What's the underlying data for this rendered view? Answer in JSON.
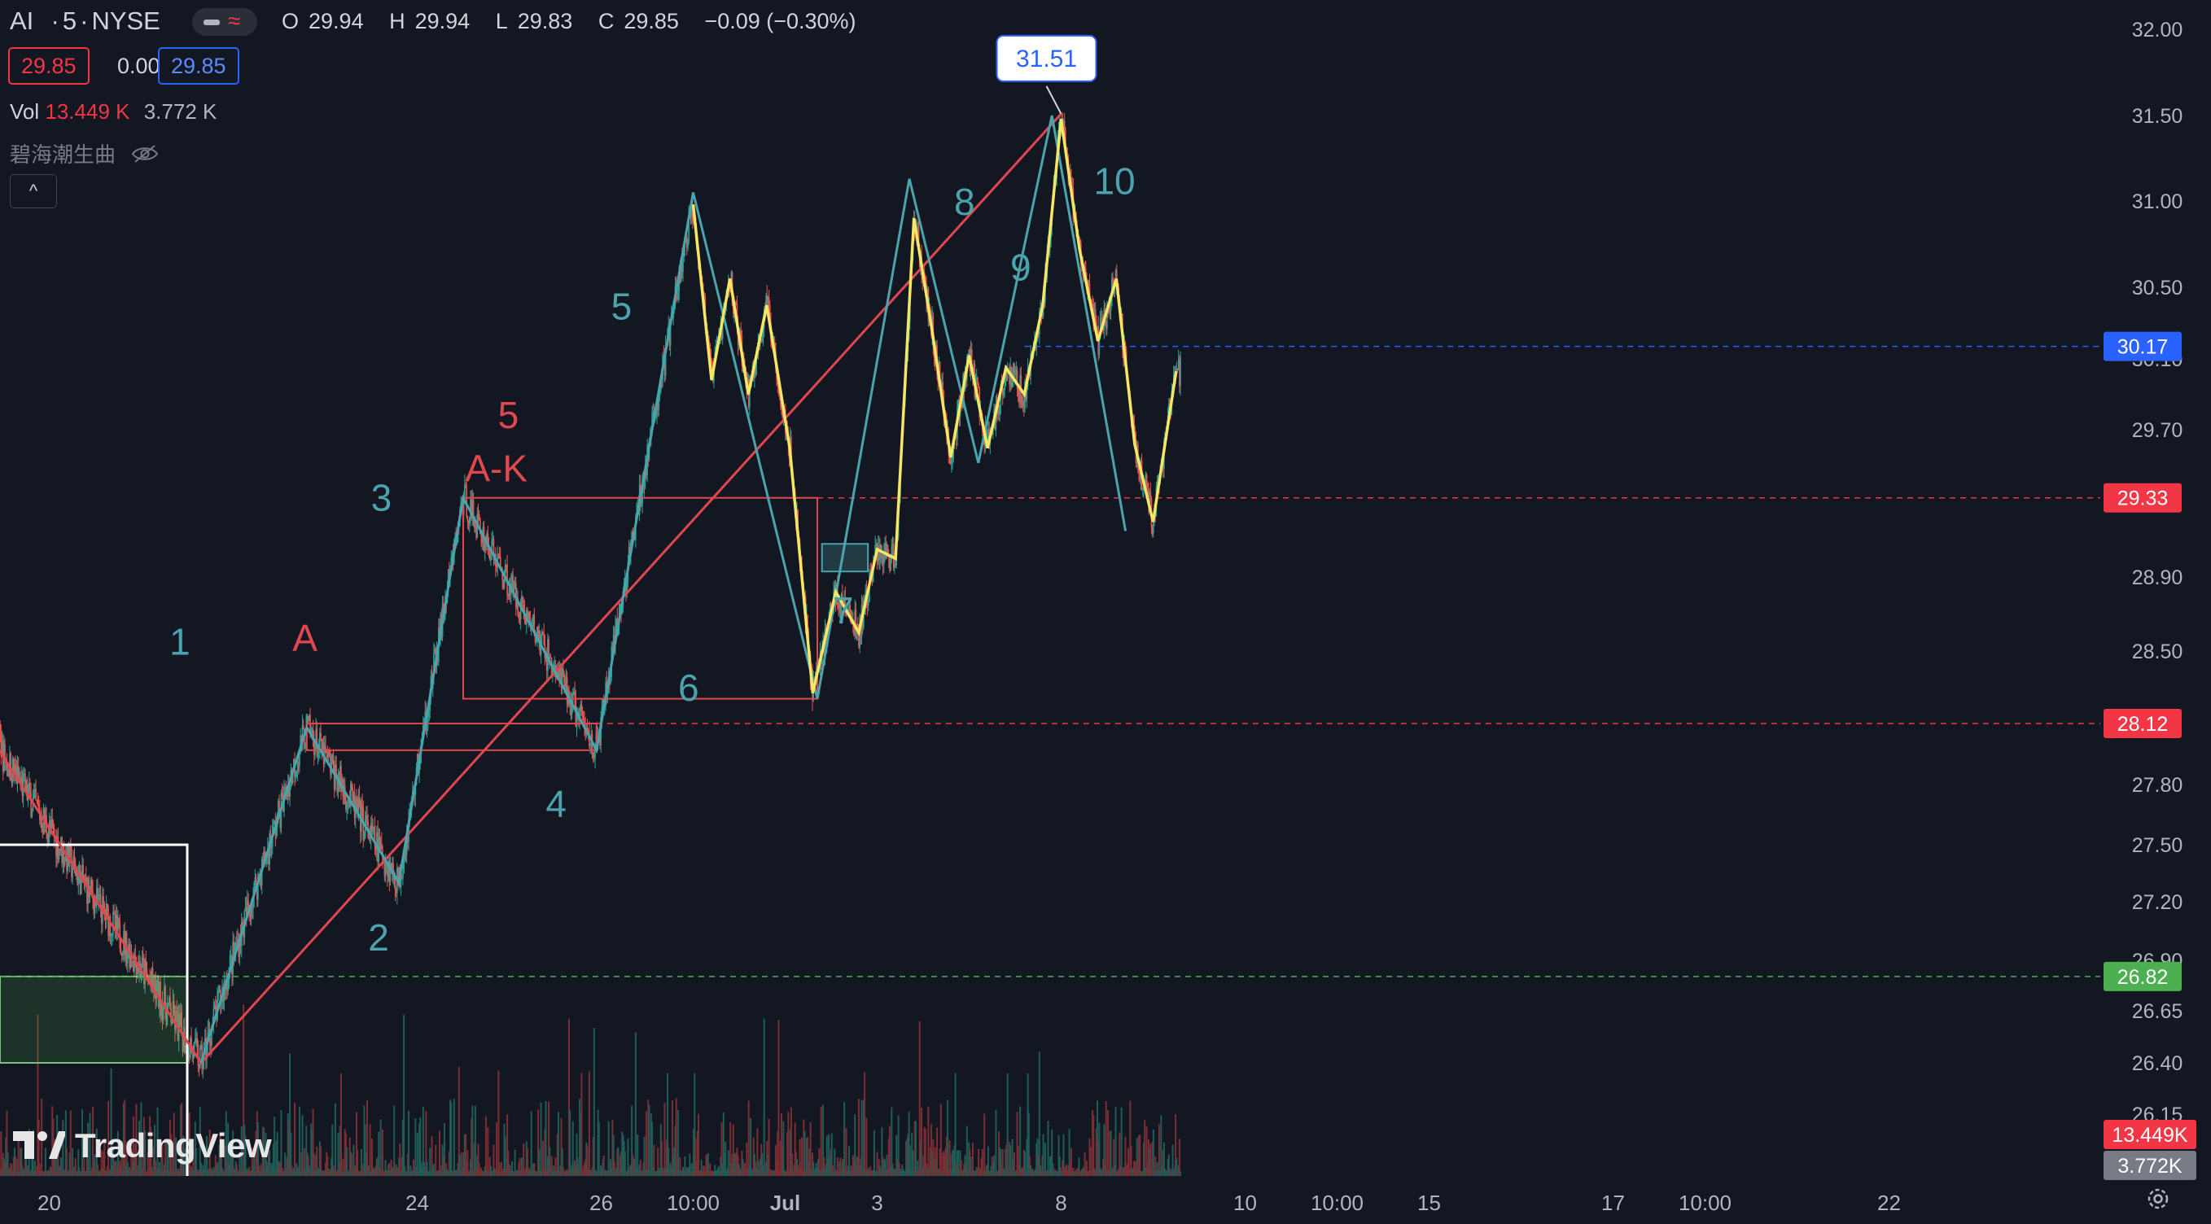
{
  "header": {
    "symbol": "AI",
    "interval": "5",
    "exchange": "NYSE",
    "open_label": "O",
    "open": "29.94",
    "high_label": "H",
    "high": "29.94",
    "low_label": "L",
    "low": "29.83",
    "close_label": "C",
    "close": "29.85",
    "change": "−0.09 (−0.30%)",
    "bid": "29.85",
    "spread": "0.00",
    "ask": "29.85",
    "volume_label": "Vol",
    "volume_value": "13.449 K",
    "volume_ma": "3.772 K",
    "indicator_name": "碧海潮生曲",
    "collapse_symbol": "^"
  },
  "brand": {
    "name": "TradingView",
    "logo_icon": "tradingview-logo-icon"
  },
  "colors": {
    "background": "#131722",
    "up": "#26a69a",
    "down": "#ef5350",
    "wave_teal": "#4ba3ad",
    "wave_yellow": "#f5e663",
    "trend_red": "#e0474f",
    "box_red": "#e0474f",
    "price_blue": "#2962ff",
    "price_red": "#f23645",
    "price_green": "#4caf50"
  },
  "chart_data": {
    "type": "candlestick",
    "title": "",
    "yticks": [
      32.0,
      31.5,
      31.0,
      30.5,
      30.1,
      29.7,
      28.9,
      28.5,
      27.8,
      27.5,
      27.2,
      26.9,
      26.65,
      26.4,
      26.15
    ],
    "xticks": [
      {
        "label": "20",
        "t": -1.5
      },
      {
        "label": "24",
        "t": 2.5
      },
      {
        "label": "26",
        "t": 4.5
      },
      {
        "label": "10:00",
        "t": 5.5
      },
      {
        "label": "Jul",
        "t": 6.5
      },
      {
        "label": "3",
        "t": 7.5
      },
      {
        "label": "8",
        "t": 9.5
      },
      {
        "label": "10",
        "t": 11.5
      },
      {
        "label": "10:00",
        "t": 12.5
      },
      {
        "label": "15",
        "t": 13.5
      },
      {
        "label": "17",
        "t": 15.5
      },
      {
        "label": "10:00",
        "t": 16.5
      },
      {
        "label": "22",
        "t": 18.5
      }
    ],
    "price_tags": [
      {
        "value": "30.17",
        "color": "#2962ff",
        "dash": "#2962ff"
      },
      {
        "value": "29.33",
        "color": "#f23645",
        "dash": "#f23645"
      },
      {
        "value": "28.12",
        "color": "#f23645",
        "dash": "#f23645"
      },
      {
        "value": "26.82",
        "color": "#4caf50",
        "dash": "#4caf50"
      }
    ],
    "volume_tags": [
      {
        "value": "13.449K",
        "color": "#f23645"
      },
      {
        "value": "3.772K",
        "color": "#787b86"
      }
    ],
    "high_callout": "31.51",
    "wave_teal": [
      {
        "t": 0.15,
        "p": 26.4
      },
      {
        "t": 1.3,
        "p": 28.1
      },
      {
        "t": 2.3,
        "p": 27.3
      },
      {
        "t": 3.0,
        "p": 29.33
      },
      {
        "t": 4.45,
        "p": 27.98
      },
      {
        "t": 5.5,
        "p": 31.05
      },
      {
        "t": 6.85,
        "p": 28.25
      },
      {
        "t": 7.85,
        "p": 31.13
      },
      {
        "t": 8.6,
        "p": 29.52
      },
      {
        "t": 9.4,
        "p": 31.5
      },
      {
        "t": 10.2,
        "p": 29.15
      }
    ],
    "wave_yellow": [
      {
        "t": 5.5,
        "p": 30.98
      },
      {
        "t": 5.7,
        "p": 29.98
      },
      {
        "t": 5.9,
        "p": 30.55
      },
      {
        "t": 6.1,
        "p": 29.9
      },
      {
        "t": 6.3,
        "p": 30.4
      },
      {
        "t": 6.55,
        "p": 29.6
      },
      {
        "t": 6.8,
        "p": 28.28
      },
      {
        "t": 7.05,
        "p": 28.82
      },
      {
        "t": 7.3,
        "p": 28.6
      },
      {
        "t": 7.5,
        "p": 29.05
      },
      {
        "t": 7.7,
        "p": 29.0
      },
      {
        "t": 7.9,
        "p": 30.9
      },
      {
        "t": 8.1,
        "p": 30.25
      },
      {
        "t": 8.3,
        "p": 29.55
      },
      {
        "t": 8.5,
        "p": 30.12
      },
      {
        "t": 8.7,
        "p": 29.6
      },
      {
        "t": 8.9,
        "p": 30.05
      },
      {
        "t": 9.1,
        "p": 29.9
      },
      {
        "t": 9.3,
        "p": 30.4
      },
      {
        "t": 9.5,
        "p": 31.48
      },
      {
        "t": 9.7,
        "p": 30.72
      },
      {
        "t": 9.9,
        "p": 30.2
      },
      {
        "t": 10.1,
        "p": 30.55
      },
      {
        "t": 10.3,
        "p": 29.62
      },
      {
        "t": 10.5,
        "p": 29.2
      },
      {
        "t": 10.75,
        "p": 30.03
      }
    ],
    "trend_red": [
      {
        "t": -2.9,
        "p": 28.62
      },
      {
        "t": 0.15,
        "p": 26.4
      },
      {
        "t": 9.5,
        "p": 31.51
      }
    ],
    "boxes_red": [
      {
        "t1": 3.0,
        "t2": 6.85,
        "p1": 29.33,
        "p2": 28.25
      },
      {
        "t1": 1.3,
        "t2": 4.45,
        "p1": 28.12,
        "p2": 27.98
      }
    ],
    "box_teal": {
      "t1": 6.9,
      "t2": 7.4,
      "p1": 29.08,
      "p2": 28.93
    },
    "box_white": {
      "t1": -3.0,
      "t2": 0.0,
      "p1": 27.5,
      "p2": 26.4
    },
    "box_green": {
      "t1": -3.0,
      "t2": 0.0,
      "p1": 26.82,
      "p2": 26.4
    },
    "labels": [
      {
        "text": "1",
        "t": -0.08,
        "p": 28.48,
        "color": "#4ba3ad"
      },
      {
        "text": "A",
        "t": 1.28,
        "p": 28.5,
        "color": "#e0474f"
      },
      {
        "text": "2",
        "t": 2.08,
        "p": 26.95,
        "color": "#4ba3ad"
      },
      {
        "text": "3",
        "t": 2.11,
        "p": 29.26,
        "color": "#4ba3ad"
      },
      {
        "text": "5",
        "t": 3.49,
        "p": 29.71,
        "color": "#e0474f"
      },
      {
        "text": "A-K",
        "t": 3.36,
        "p": 29.42,
        "color": "#e0474f"
      },
      {
        "text": "4",
        "t": 4.01,
        "p": 27.64,
        "color": "#4ba3ad"
      },
      {
        "text": "5",
        "t": 4.72,
        "p": 30.32,
        "color": "#4ba3ad"
      },
      {
        "text": "6",
        "t": 5.45,
        "p": 28.24,
        "color": "#4ba3ad"
      },
      {
        "text": "7",
        "t": 7.13,
        "p": 28.65,
        "color": "#4ba3ad"
      },
      {
        "text": "8",
        "t": 8.45,
        "p": 30.92,
        "color": "#4ba3ad"
      },
      {
        "text": "9",
        "t": 9.06,
        "p": 30.54,
        "color": "#4ba3ad"
      },
      {
        "text": "10",
        "t": 10.08,
        "p": 31.04,
        "color": "#4ba3ad"
      }
    ]
  }
}
